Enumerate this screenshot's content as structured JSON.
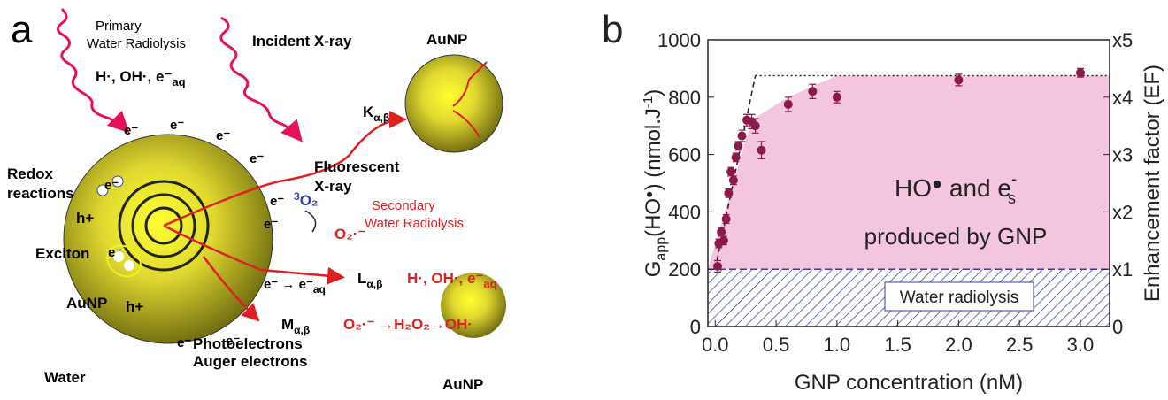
{
  "panel_a": {
    "letter": "a",
    "primary": [
      "Primary",
      "Water Radiolysis"
    ],
    "primary_species": [
      "H·, OH·, e⁻",
      "aq"
    ],
    "incident": "Incident X-ray",
    "aunp": [
      "AuNP",
      "AuNP",
      "AuNP"
    ],
    "electrons": [
      "e⁻",
      "e⁻",
      "e⁻",
      "e⁻",
      "e⁻",
      "e⁻",
      "e⁻",
      "e⁻",
      "e⁻",
      "e⁻"
    ],
    "redox": [
      "Redox",
      "reactions"
    ],
    "holes": [
      "h+",
      "h+"
    ],
    "exciton": "Exciton",
    "oxygen": [
      "3",
      "O₂"
    ],
    "superoxide": "O₂·⁻",
    "fluorescent": [
      "Fluorescent",
      "X-ray"
    ],
    "secondary": [
      "Secondary",
      "Water Radiolysis"
    ],
    "k_line": [
      "K",
      "α,β"
    ],
    "l_line": [
      "L",
      "α,β"
    ],
    "m_line": [
      "M",
      "α,β"
    ],
    "secondary_species": [
      "H·, OH·, e⁻",
      "aq"
    ],
    "solvation": [
      "e⁻ →  e⁻",
      "aq"
    ],
    "reaction": "O₂·⁻ →H₂O₂→OH·",
    "photo": [
      "Photoelectrons",
      "Auger electrons"
    ],
    "water": "Water"
  },
  "chart_data": {
    "type": "scatter",
    "letter": "b",
    "x_label": "GNP concentration (nM)",
    "y_label": [
      "G",
      "app",
      "(HO",
      "●",
      ") (nmol.J",
      "-1",
      ")"
    ],
    "y2_label": "Enhancement factor (EF)",
    "annotation": [
      "HO",
      "●",
      " and e",
      "-",
      "s",
      "produced by GNP"
    ],
    "region_label": "Water radiolysis",
    "xlim": [
      -0.06,
      3.24
    ],
    "ylim": [
      0,
      1000
    ],
    "y2lim": [
      0,
      5
    ],
    "xticks": [
      {
        "value": 0,
        "label": "0.0"
      },
      0.5,
      {
        "value": 1,
        "label": "1.0"
      },
      1.5,
      {
        "value": 2,
        "label": "2.0"
      },
      2.5,
      {
        "value": 3,
        "label": "3.0"
      }
    ],
    "yticks": [
      0,
      200,
      400,
      600,
      800,
      1000
    ],
    "y2ticks": [
      0,
      {
        "value": 1,
        "label": "x1"
      },
      {
        "value": 2,
        "label": "x2"
      },
      {
        "value": 3,
        "label": "x3"
      },
      {
        "value": 4,
        "label": "x4"
      },
      {
        "value": 5,
        "label": "x5"
      }
    ],
    "points": {
      "color": "#8b1a4a",
      "x": [
        0.02,
        0.03,
        0.05,
        0.07,
        0.09,
        0.11,
        0.13,
        0.15,
        0.17,
        0.19,
        0.22,
        0.26,
        0.3,
        0.33,
        0.38,
        0.6,
        0.8,
        1.0,
        2.0,
        3.0
      ],
      "values": [
        210,
        290,
        330,
        300,
        375,
        465,
        540,
        510,
        590,
        630,
        665,
        720,
        715,
        700,
        615,
        775,
        820,
        800,
        860,
        885
      ],
      "errors": [
        20,
        15,
        15,
        15,
        15,
        15,
        15,
        15,
        15,
        15,
        20,
        20,
        25,
        25,
        30,
        25,
        25,
        20,
        20,
        15
      ]
    },
    "lines": [
      {
        "x": [
          0,
          0.33
        ],
        "values": [
          200,
          875
        ],
        "style": "dashed"
      },
      {
        "x": [
          0.33,
          3.24
        ],
        "values": [
          875,
          875
        ],
        "style": "dotted"
      }
    ],
    "areas": [
      {
        "x": [
          -0.06,
          3.24
        ],
        "values": [
          200,
          200
        ],
        "color": "#3a3fa0"
      },
      {
        "x": [
          -0.06,
          0.3,
          0.6,
          1.0,
          3.24
        ],
        "values": [
          200,
          720,
          800,
          875,
          875
        ],
        "color": "#e67fb7"
      }
    ]
  }
}
